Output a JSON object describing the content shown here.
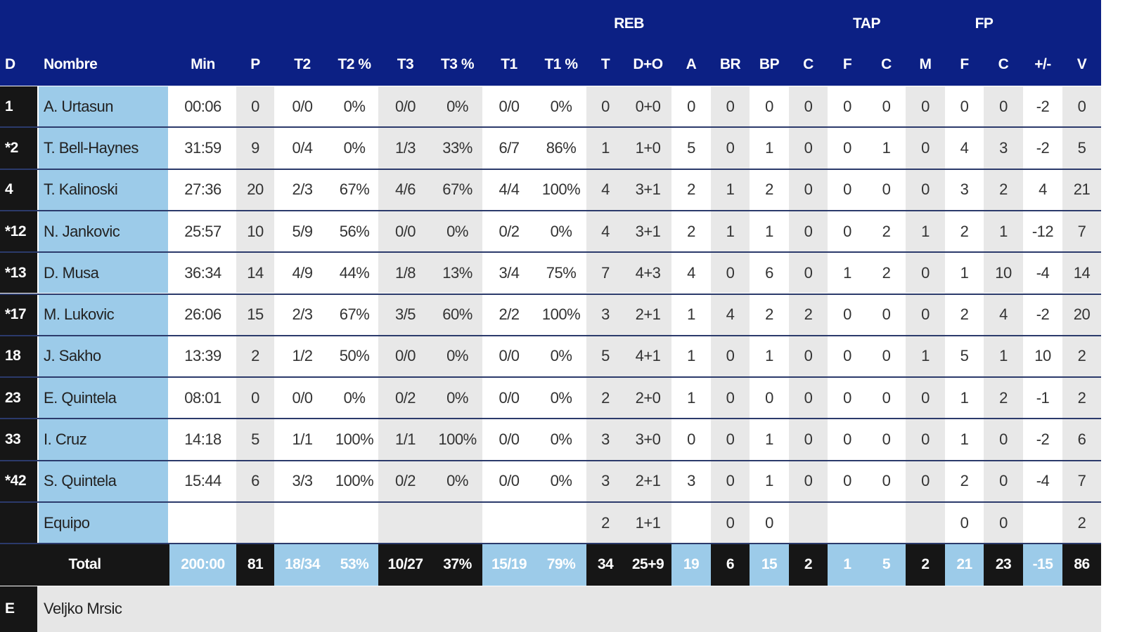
{
  "header": {
    "groups": [
      "REB",
      "TAP",
      "FP"
    ],
    "columns": [
      "D",
      "Nombre",
      "Min",
      "P",
      "T2",
      "T2 %",
      "T3",
      "T3 %",
      "T1",
      "T1 %",
      "T",
      "D+O",
      "A",
      "BR",
      "BP",
      "C",
      "F",
      "C",
      "M",
      "F",
      "C",
      "+/-",
      "V"
    ]
  },
  "table": {
    "rows": [
      [
        "1",
        "A. Urtasun",
        "00:06",
        "0",
        "0/0",
        "0%",
        "0/0",
        "0%",
        "0/0",
        "0%",
        "0",
        "0+0",
        "0",
        "0",
        "0",
        "0",
        "0",
        "0",
        "0",
        "0",
        "0",
        "-2",
        "0"
      ],
      [
        "*2",
        "T. Bell-Haynes",
        "31:59",
        "9",
        "0/4",
        "0%",
        "1/3",
        "33%",
        "6/7",
        "86%",
        "1",
        "1+0",
        "5",
        "0",
        "1",
        "0",
        "0",
        "1",
        "0",
        "4",
        "3",
        "-2",
        "5"
      ],
      [
        "4",
        "T. Kalinoski",
        "27:36",
        "20",
        "2/3",
        "67%",
        "4/6",
        "67%",
        "4/4",
        "100%",
        "4",
        "3+1",
        "2",
        "1",
        "2",
        "0",
        "0",
        "0",
        "0",
        "3",
        "2",
        "4",
        "21"
      ],
      [
        "*12",
        "N. Jankovic",
        "25:57",
        "10",
        "5/9",
        "56%",
        "0/0",
        "0%",
        "0/2",
        "0%",
        "4",
        "3+1",
        "2",
        "1",
        "1",
        "0",
        "0",
        "2",
        "1",
        "2",
        "1",
        "-12",
        "7"
      ],
      [
        "*13",
        "D. Musa",
        "36:34",
        "14",
        "4/9",
        "44%",
        "1/8",
        "13%",
        "3/4",
        "75%",
        "7",
        "4+3",
        "4",
        "0",
        "6",
        "0",
        "1",
        "2",
        "0",
        "1",
        "10",
        "-4",
        "14"
      ],
      [
        "*17",
        "M. Lukovic",
        "26:06",
        "15",
        "2/3",
        "67%",
        "3/5",
        "60%",
        "2/2",
        "100%",
        "3",
        "2+1",
        "1",
        "4",
        "2",
        "2",
        "0",
        "0",
        "0",
        "2",
        "4",
        "-2",
        "20"
      ],
      [
        "18",
        "J. Sakho",
        "13:39",
        "2",
        "1/2",
        "50%",
        "0/0",
        "0%",
        "0/0",
        "0%",
        "5",
        "4+1",
        "1",
        "0",
        "1",
        "0",
        "0",
        "0",
        "1",
        "5",
        "1",
        "10",
        "2"
      ],
      [
        "23",
        "E. Quintela",
        "08:01",
        "0",
        "0/0",
        "0%",
        "0/2",
        "0%",
        "0/0",
        "0%",
        "2",
        "2+0",
        "1",
        "0",
        "0",
        "0",
        "0",
        "0",
        "0",
        "1",
        "2",
        "-1",
        "2"
      ],
      [
        "33",
        "I. Cruz",
        "14:18",
        "5",
        "1/1",
        "100%",
        "1/1",
        "100%",
        "0/0",
        "0%",
        "3",
        "3+0",
        "0",
        "0",
        "1",
        "0",
        "0",
        "0",
        "0",
        "1",
        "0",
        "-2",
        "6"
      ],
      [
        "*42",
        "S. Quintela",
        "15:44",
        "6",
        "3/3",
        "100%",
        "0/2",
        "0%",
        "0/0",
        "0%",
        "3",
        "2+1",
        "3",
        "0",
        "1",
        "0",
        "0",
        "0",
        "0",
        "2",
        "0",
        "-4",
        "7"
      ],
      [
        null,
        "Equipo",
        null,
        null,
        null,
        null,
        null,
        null,
        null,
        null,
        "2",
        "1+1",
        null,
        "0",
        "0",
        null,
        null,
        null,
        null,
        "0",
        "0",
        null,
        "2"
      ]
    ],
    "total": {
      "label": "Total",
      "values": [
        "200:00",
        "81",
        "18/34",
        "53%",
        "10/27",
        "37%",
        "15/19",
        "79%",
        "34",
        "25+9",
        "19",
        "6",
        "15",
        "2",
        "1",
        "5",
        "2",
        "21",
        "23",
        "-15",
        "86"
      ]
    }
  },
  "coach": {
    "label": "E",
    "name": "Veljko Mrsic"
  }
}
